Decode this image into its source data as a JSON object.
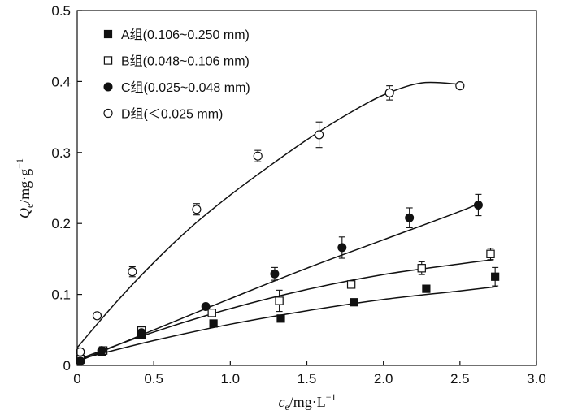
{
  "chart_data": {
    "type": "scatter",
    "title": "",
    "xlabel": {
      "var": "c",
      "sub": "e",
      "unit": "/mg·L",
      "sup": "−1"
    },
    "ylabel": {
      "var": "Q",
      "sub": "e",
      "unit": "/mg·g",
      "sup": "−1"
    },
    "xlim": [
      0,
      3.0
    ],
    "ylim": [
      0,
      0.5
    ],
    "xticks": [
      "0",
      "0.5",
      "1.0",
      "1.5",
      "2.0",
      "2.5",
      "3.0"
    ],
    "yticks": [
      "0",
      "0.1",
      "0.2",
      "0.3",
      "0.4",
      "0.5"
    ],
    "grid": false,
    "legend_placement": "top-left",
    "series": [
      {
        "name": "A组(0.106~0.250 mm)",
        "marker": "square-filled",
        "x": [
          0.02,
          0.16,
          0.42,
          0.89,
          1.33,
          1.81,
          2.28,
          2.73
        ],
        "y": [
          0.008,
          0.019,
          0.043,
          0.059,
          0.066,
          0.089,
          0.108,
          0.125
        ],
        "err": [
          0.002,
          0.003,
          0.004,
          0.003,
          0.004,
          0.003,
          0.003,
          0.013
        ],
        "fit": [
          [
            0.0,
            0.008
          ],
          [
            0.5,
            0.035
          ],
          [
            1.0,
            0.058
          ],
          [
            1.5,
            0.077
          ],
          [
            2.0,
            0.093
          ],
          [
            2.5,
            0.105
          ],
          [
            2.74,
            0.111
          ]
        ]
      },
      {
        "name": "B组(0.048~0.106 mm)",
        "marker": "square-open",
        "x": [
          0.02,
          0.17,
          0.42,
          0.88,
          1.32,
          1.79,
          2.25,
          2.7
        ],
        "y": [
          0.009,
          0.021,
          0.049,
          0.074,
          0.091,
          0.114,
          0.137,
          0.157
        ],
        "err": [
          0.002,
          0.003,
          0.005,
          0.005,
          0.015,
          0.005,
          0.009,
          0.008
        ],
        "fit": [
          [
            0.0,
            0.008
          ],
          [
            0.5,
            0.047
          ],
          [
            1.0,
            0.08
          ],
          [
            1.5,
            0.107
          ],
          [
            2.0,
            0.128
          ],
          [
            2.5,
            0.143
          ],
          [
            2.72,
            0.149
          ]
        ]
      },
      {
        "name": "C组(0.025~0.048 mm)",
        "marker": "circle-filled",
        "x": [
          0.02,
          0.16,
          0.42,
          0.84,
          1.29,
          1.73,
          2.17,
          2.62
        ],
        "y": [
          0.006,
          0.021,
          0.046,
          0.083,
          0.129,
          0.166,
          0.208,
          0.226
        ],
        "err": [
          0.002,
          0.003,
          0.004,
          0.003,
          0.009,
          0.015,
          0.014,
          0.015
        ],
        "fit": [
          [
            0.0,
            0.005
          ],
          [
            0.5,
            0.05
          ],
          [
            1.0,
            0.094
          ],
          [
            1.5,
            0.137
          ],
          [
            2.0,
            0.177
          ],
          [
            2.5,
            0.217
          ],
          [
            2.64,
            0.23
          ]
        ]
      },
      {
        "name": "D组(＜0.025 mm)",
        "marker": "circle-open",
        "x": [
          0.02,
          0.13,
          0.36,
          0.78,
          1.18,
          1.58,
          2.04,
          2.5
        ],
        "y": [
          0.019,
          0.07,
          0.132,
          0.22,
          0.295,
          0.325,
          0.384,
          0.394
        ],
        "err": [
          0.003,
          0.004,
          0.007,
          0.008,
          0.008,
          0.018,
          0.01,
          0.004
        ],
        "fit": [
          [
            0.0,
            0.025
          ],
          [
            0.25,
            0.088
          ],
          [
            0.5,
            0.145
          ],
          [
            0.75,
            0.196
          ],
          [
            1.0,
            0.24
          ],
          [
            1.25,
            0.28
          ],
          [
            1.5,
            0.318
          ],
          [
            1.75,
            0.352
          ],
          [
            2.0,
            0.381
          ],
          [
            2.25,
            0.398
          ],
          [
            2.5,
            0.396
          ]
        ]
      }
    ]
  }
}
